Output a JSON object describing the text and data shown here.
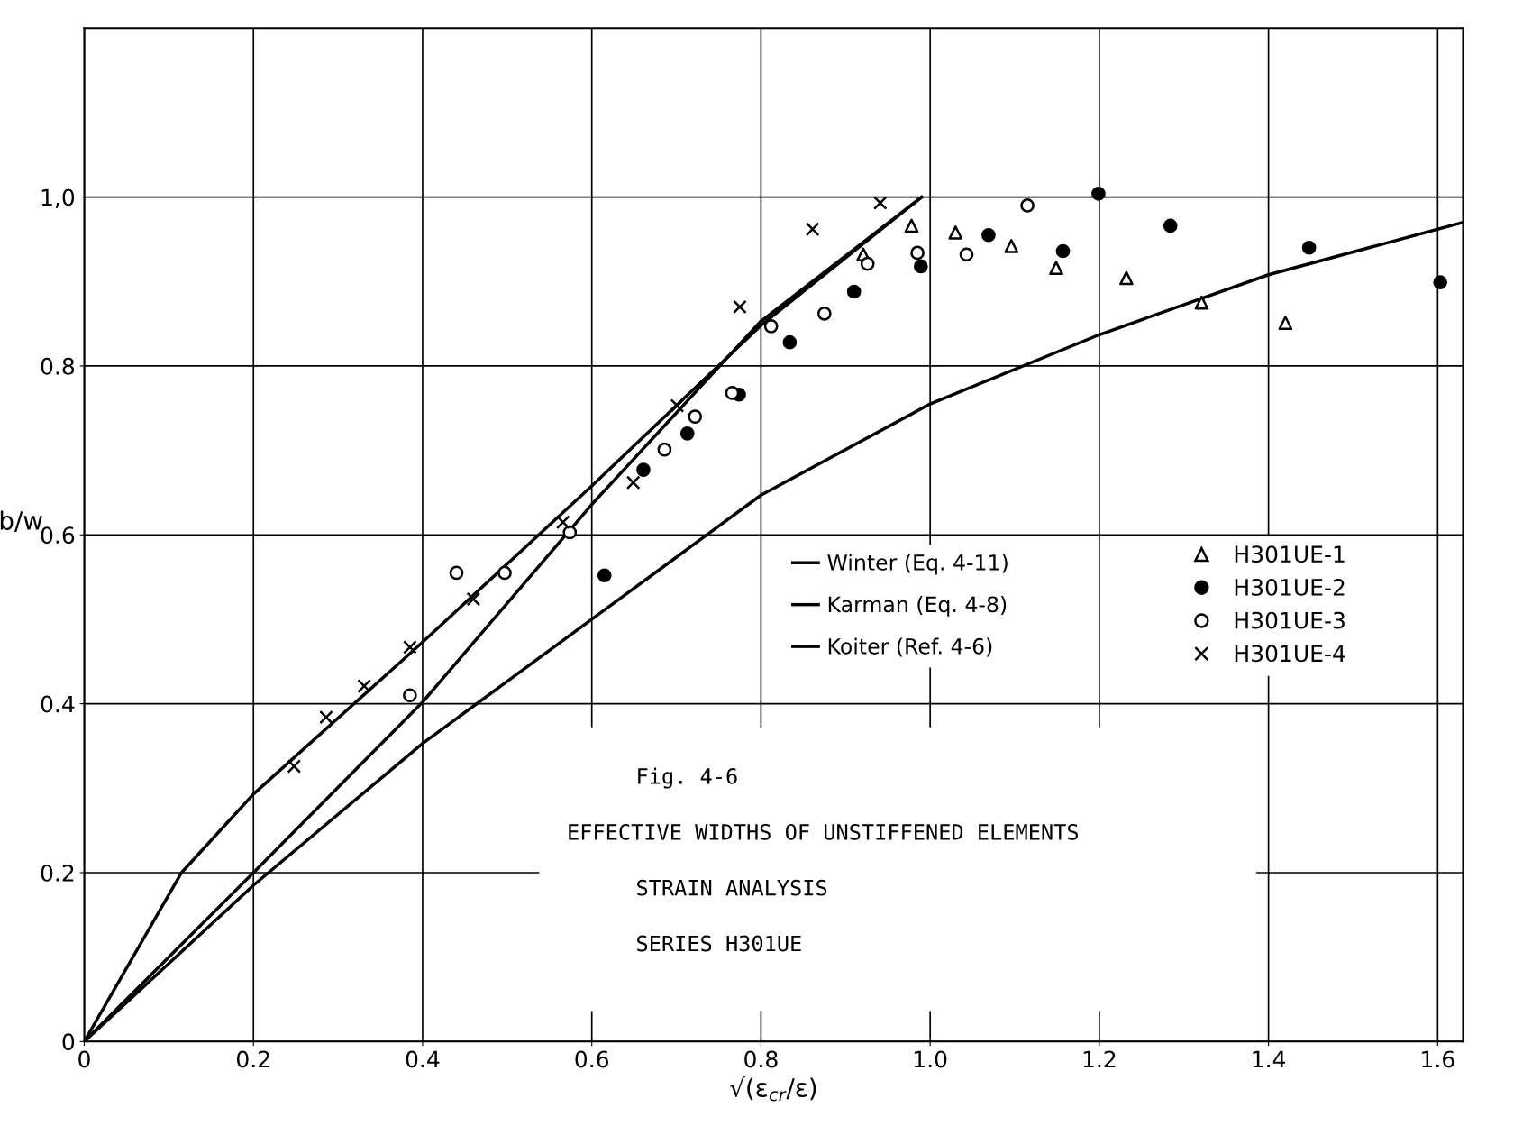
{
  "chart_data": {
    "type": "scatter",
    "annotations": [
      "Fig. 4-6",
      "EFFECTIVE WIDTHS OF UNSTIFFENED ELEMENTS",
      "STRAIN ANALYSIS",
      "SERIES H301UE"
    ],
    "xlabel": "√(ε$_{cr}$/ε)",
    "ylabel": "b/w",
    "xlim": [
      0,
      1.63
    ],
    "ylim": [
      0,
      1.2
    ],
    "xticks": [
      0,
      0.2,
      0.4,
      0.6,
      0.8,
      {
        "value": 1.0,
        "label": "1.0"
      },
      1.2,
      1.4,
      1.6
    ],
    "yticks": [
      0,
      0.2,
      0.4,
      0.6,
      0.8,
      {
        "value": 1.0,
        "label": "1,0"
      }
    ],
    "grid": true,
    "legend": "right",
    "series": [
      {
        "name": "Winter (Eq. 4-11)",
        "type": "line",
        "color": "#000000",
        "marker": "none",
        "x": [
          0,
          0.115,
          0.2,
          0.4,
          0.6,
          0.8,
          0.99
        ],
        "values": [
          0,
          0.2,
          0.293,
          0.473,
          0.658,
          0.848,
          1.0
        ]
      },
      {
        "name": "Karman (Eq. 4-8)",
        "type": "line",
        "color": "#000000",
        "marker": "none",
        "x": [
          0,
          0.2,
          0.4,
          0.6,
          0.8,
          0.99
        ],
        "values": [
          0,
          0.2,
          0.402,
          0.636,
          0.853,
          1.0
        ]
      },
      {
        "name": "Koiter (Ref. 4-6)",
        "type": "line",
        "color": "#000000",
        "marker": "none",
        "x": [
          0,
          0.2,
          0.4,
          0.6,
          0.8,
          1.0,
          1.2,
          1.4,
          1.63
        ],
        "values": [
          0,
          0.185,
          0.353,
          0.5,
          0.647,
          0.755,
          0.837,
          0.908,
          0.97
        ]
      },
      {
        "name": "H301UE-1",
        "color": "#000000",
        "marker": "triangle",
        "colors": [
          "#ffffff",
          "#ffffff",
          "#ffffff",
          "#ffffff",
          "#ffffff",
          "#ffffff",
          "#ffffff",
          "#ffffff"
        ],
        "x": [
          0.921,
          0.978,
          1.03,
          1.096,
          1.149,
          1.232,
          1.321,
          1.42
        ],
        "values": [
          0.932,
          0.966,
          0.958,
          0.942,
          0.916,
          0.904,
          0.875,
          0.851
        ]
      },
      {
        "name": "H301UE-2",
        "color": "#000000",
        "marker": "circle",
        "x": [
          0.615,
          0.661,
          0.713,
          0.774,
          0.834,
          0.91,
          0.989,
          1.069,
          1.157,
          1.199,
          1.284,
          1.448,
          1.603
        ],
        "values": [
          0.552,
          0.677,
          0.72,
          0.766,
          0.828,
          0.888,
          0.918,
          0.955,
          0.936,
          1.004,
          0.966,
          0.94,
          0.899
        ]
      },
      {
        "name": "H301UE-3",
        "color": "#000000",
        "marker": "circle",
        "colors": [
          "#ffffff",
          "#ffffff",
          "#ffffff",
          "#ffffff",
          "#ffffff",
          "#ffffff",
          "#ffffff",
          "#ffffff",
          "#ffffff",
          "#ffffff",
          "#ffffff",
          "#ffffff",
          "#ffffff"
        ],
        "x": [
          0.385,
          0.44,
          0.497,
          0.574,
          0.686,
          0.722,
          0.766,
          0.812,
          0.875,
          0.926,
          0.985,
          1.043,
          1.115
        ],
        "values": [
          0.41,
          0.555,
          0.555,
          0.603,
          0.701,
          0.74,
          0.768,
          0.847,
          0.862,
          0.921,
          0.934,
          0.932,
          0.99
        ]
      },
      {
        "name": "H301UE-4",
        "color": "#000000",
        "marker": "cross",
        "x": [
          0.248,
          0.286,
          0.331,
          0.385,
          0.46,
          0.566,
          0.649,
          0.701,
          0.775,
          0.861,
          0.941
        ],
        "values": [
          0.326,
          0.384,
          0.421,
          0.467,
          0.524,
          0.615,
          0.662,
          0.753,
          0.87,
          0.962,
          0.993
        ]
      }
    ]
  }
}
